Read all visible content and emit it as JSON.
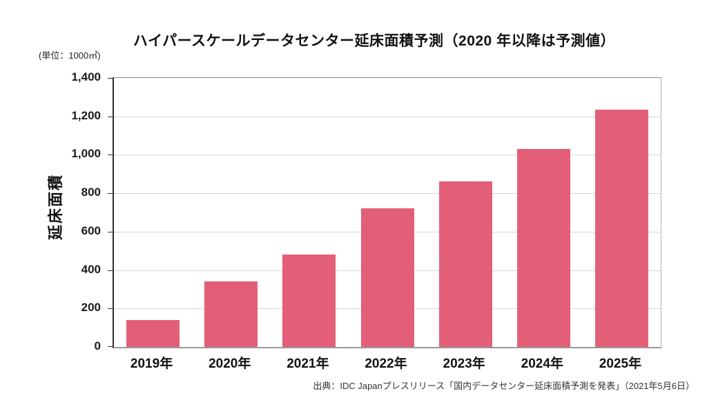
{
  "chart_data": {
    "type": "bar",
    "title": "ハイパースケールデータセンター延床面積予測（2020 年以降は予測値）",
    "unit_label": "(単位：1000㎡)",
    "ylabel": "延床面積",
    "xlabel": "",
    "categories": [
      "2019年",
      "2020年",
      "2021年",
      "2022年",
      "2023年",
      "2024年",
      "2025年"
    ],
    "values": [
      140,
      340,
      480,
      720,
      860,
      1030,
      1235
    ],
    "ylim": [
      0,
      1400
    ],
    "ytick_step": 200,
    "ytick_labels": [
      "0",
      "200",
      "400",
      "600",
      "800",
      "1,000",
      "1,200",
      "1,400"
    ],
    "grid": "horizontal",
    "legend": "none",
    "bar_color": "#e25f77",
    "source": "出典：IDC Japanプレスリリース「国内データセンター延床面積予測を発表」（2021年5月6日）"
  }
}
